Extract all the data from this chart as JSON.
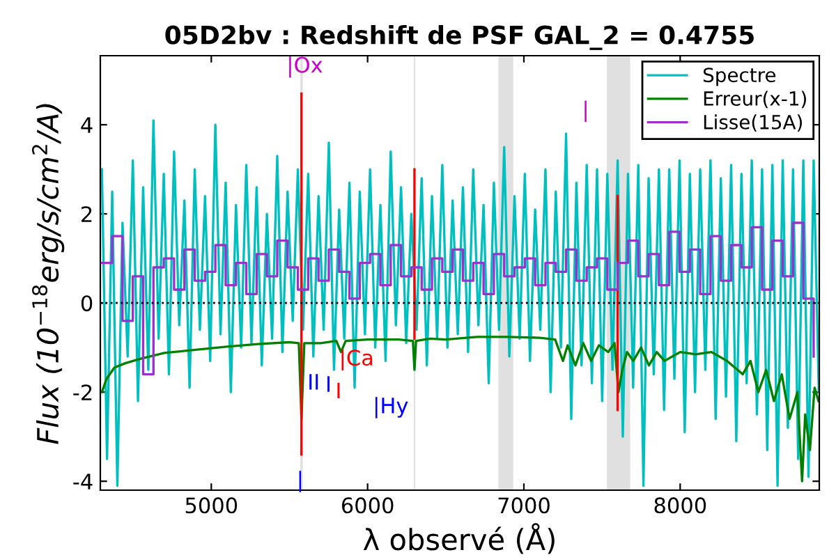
{
  "chart_data": {
    "type": "line",
    "title": "05D2bv : Redshift de PSF GAL_2 = 0.4755",
    "xlabel": "λ observé (Å)",
    "ylabel": "Flux (10$^{−18}$erg/s/cm$^{2}$/A)",
    "xlim": [
      4290,
      8890
    ],
    "ylim": [
      -4.2,
      5.55
    ],
    "xticks": [
      5000,
      6000,
      7000,
      8000
    ],
    "yticks": [
      -4,
      -2,
      0,
      2,
      4
    ],
    "grid": false,
    "legend": "top right",
    "series": [
      {
        "name": "Spectre",
        "color": "#00bfbf",
        "x": [
          4300,
          4333,
          4366,
          4399,
          4432,
          4465,
          4498,
          4531,
          4564,
          4597,
          4630,
          4663,
          4696,
          4729,
          4762,
          4795,
          4828,
          4861,
          4894,
          4927,
          4960,
          4993,
          5026,
          5059,
          5092,
          5125,
          5158,
          5191,
          5224,
          5257,
          5290,
          5323,
          5356,
          5389,
          5422,
          5455,
          5488,
          5521,
          5554,
          5587,
          5620,
          5653,
          5686,
          5719,
          5752,
          5785,
          5818,
          5851,
          5884,
          5917,
          5950,
          5983,
          6016,
          6049,
          6082,
          6115,
          6148,
          6181,
          6214,
          6247,
          6280,
          6313,
          6346,
          6379,
          6412,
          6445,
          6478,
          6511,
          6544,
          6577,
          6610,
          6643,
          6676,
          6709,
          6742,
          6775,
          6808,
          6841,
          6874,
          6907,
          6940,
          6973,
          7006,
          7039,
          7072,
          7105,
          7138,
          7171,
          7204,
          7237,
          7270,
          7303,
          7336,
          7369,
          7402,
          7435,
          7468,
          7501,
          7534,
          7567,
          7600,
          7633,
          7666,
          7699,
          7732,
          7765,
          7798,
          7831,
          7864,
          7897,
          7930,
          7963,
          7996,
          8029,
          8062,
          8095,
          8128,
          8161,
          8194,
          8227,
          8260,
          8293,
          8326,
          8359,
          8392,
          8425,
          8458,
          8491,
          8524,
          8557,
          8590,
          8623,
          8656,
          8689,
          8722,
          8755,
          8788,
          8821,
          8854,
          8887
        ],
        "values": [
          3.0,
          -3.5,
          2.5,
          -4.1,
          1.8,
          -1.2,
          3.2,
          -2.2,
          2.6,
          -1.5,
          4.1,
          -0.8,
          2.9,
          -1.6,
          3.4,
          -0.5,
          2.3,
          -1.9,
          3.0,
          -0.6,
          2.4,
          -1.3,
          4.0,
          -0.7,
          2.7,
          -2.0,
          2.2,
          -1.0,
          3.1,
          -0.9,
          2.6,
          -1.4,
          2.0,
          -0.8,
          3.3,
          -1.1,
          2.5,
          -0.4,
          3.0,
          -0.6,
          2.9,
          -1.2,
          2.4,
          -0.6,
          3.6,
          -1.5,
          2.1,
          -0.8,
          2.7,
          -1.9,
          2.5,
          -0.7,
          3.0,
          -1.0,
          2.2,
          -1.3,
          3.4,
          -0.5,
          2.6,
          -0.9,
          2.0,
          -0.6,
          2.8,
          -1.4,
          2.4,
          -0.8,
          3.1,
          -1.0,
          2.3,
          -0.7,
          2.6,
          -1.1,
          3.0,
          -0.5,
          2.2,
          -1.8,
          2.7,
          -0.6,
          3.5,
          -1.2,
          2.4,
          -0.8,
          2.9,
          -1.3,
          2.1,
          -0.6,
          3.0,
          -2.0,
          2.5,
          -1.0,
          3.8,
          -2.6,
          2.7,
          -1.4,
          3.1,
          -1.8,
          3.0,
          -2.2,
          2.9,
          -1.5,
          3.2,
          -3.0,
          2.9,
          -1.9,
          3.1,
          -4.1,
          2.8,
          -1.6,
          3.0,
          -2.4,
          3.0,
          -1.7,
          3.2,
          -2.9,
          2.9,
          -2.0,
          3.0,
          -1.5,
          3.2,
          -2.6,
          2.8,
          -2.1,
          3.1,
          -3.1,
          2.9,
          -1.8,
          3.2,
          -2.5,
          3.0,
          -3.3,
          3.1,
          -4.1,
          3.2,
          -2.8,
          3.0,
          -3.5,
          3.2,
          -3.9,
          3.2,
          -2.0
        ]
      },
      {
        "name": "Erreur(x-1)",
        "color": "#008000",
        "x": [
          4300,
          4330,
          4380,
          4450,
          4550,
          4700,
          4900,
          5100,
          5300,
          5500,
          5560,
          5577,
          5595,
          5700,
          5800,
          5830,
          5860,
          6000,
          6200,
          6290,
          6300,
          6310,
          6400,
          6500,
          6700,
          6900,
          7100,
          7200,
          7250,
          7280,
          7330,
          7380,
          7430,
          7480,
          7540,
          7580,
          7605,
          7630,
          7660,
          7700,
          7750,
          7800,
          7850,
          7900,
          8000,
          8100,
          8200,
          8300,
          8400,
          8450,
          8500,
          8550,
          8600,
          8650,
          8700,
          8750,
          8780,
          8800,
          8830,
          8860,
          8885
        ],
        "values": [
          -2.0,
          -1.7,
          -1.45,
          -1.35,
          -1.25,
          -1.12,
          -1.05,
          -0.98,
          -0.92,
          -0.88,
          -0.9,
          -2.6,
          -0.9,
          -0.9,
          -0.85,
          -1.1,
          -0.85,
          -0.82,
          -0.82,
          -0.85,
          -1.5,
          -0.85,
          -0.8,
          -0.82,
          -0.76,
          -0.76,
          -0.78,
          -0.82,
          -1.3,
          -0.95,
          -1.4,
          -0.9,
          -1.3,
          -0.95,
          -1.1,
          -0.9,
          -2.0,
          -1.5,
          -1.1,
          -1.3,
          -1.0,
          -1.4,
          -1.1,
          -1.3,
          -1.1,
          -1.15,
          -1.1,
          -1.3,
          -1.6,
          -1.3,
          -2.0,
          -1.5,
          -2.2,
          -1.6,
          -2.6,
          -2.0,
          -4.0,
          -2.5,
          -3.3,
          -1.9,
          -2.2
        ]
      },
      {
        "name": "Lisse(15A)",
        "type": "step",
        "color": "#9932cc",
        "x": [
          4300,
          4366,
          4432,
          4498,
          4564,
          4630,
          4696,
          4762,
          4828,
          4894,
          4960,
          5026,
          5092,
          5158,
          5224,
          5290,
          5356,
          5422,
          5488,
          5554,
          5620,
          5686,
          5752,
          5818,
          5884,
          5950,
          6016,
          6082,
          6148,
          6214,
          6280,
          6346,
          6412,
          6478,
          6544,
          6610,
          6676,
          6742,
          6808,
          6874,
          6940,
          7006,
          7072,
          7138,
          7204,
          7270,
          7336,
          7402,
          7468,
          7534,
          7600,
          7666,
          7732,
          7798,
          7864,
          7930,
          7996,
          8062,
          8128,
          8194,
          8260,
          8326,
          8392,
          8458,
          8524,
          8590,
          8656,
          8722,
          8788,
          8854
        ],
        "values": [
          0.9,
          1.5,
          -0.4,
          0.6,
          -1.6,
          0.8,
          1.0,
          0.3,
          1.2,
          0.5,
          0.7,
          1.3,
          0.4,
          0.9,
          0.2,
          1.1,
          0.6,
          1.4,
          0.8,
          0.3,
          1.0,
          0.5,
          1.2,
          0.7,
          0.1,
          0.9,
          1.1,
          0.4,
          1.3,
          0.6,
          0.8,
          0.3,
          1.0,
          0.7,
          1.2,
          0.5,
          0.9,
          0.2,
          1.1,
          0.6,
          0.8,
          1.0,
          0.4,
          0.9,
          0.7,
          1.2,
          0.5,
          0.8,
          1.0,
          0.3,
          0.9,
          1.4,
          0.6,
          1.1,
          0.4,
          1.6,
          0.7,
          1.2,
          0.2,
          1.5,
          0.5,
          1.3,
          0.8,
          1.7,
          0.3,
          1.4,
          0.6,
          1.8,
          0.1,
          -1.2
        ]
      },
      {
        "color": "#ff0000",
        "x": [
          5577,
          5577
        ],
        "values": [
          4.7,
          -3.4
        ]
      },
      {
        "color": "#ff0000",
        "x": [
          6300,
          6300
        ],
        "values": [
          3.0,
          -0.8
        ]
      },
      {
        "color": "#ff0000",
        "x": [
          7600,
          7600
        ],
        "values": [
          2.4,
          -2.4
        ]
      }
    ],
    "ref_lines": [
      {
        "axis": "y",
        "value": 0,
        "color": "#000000",
        "line_style": "dotted"
      }
    ],
    "bands": [
      {
        "axis": "x",
        "from": 5570,
        "to": 5585,
        "color": "#e0e0e0"
      },
      {
        "axis": "x",
        "from": 6295,
        "to": 6305,
        "color": "#e0e0e0"
      },
      {
        "axis": "x",
        "from": 6837,
        "to": 6932,
        "color": "#e0e0e0"
      },
      {
        "axis": "x",
        "from": 7531,
        "to": 7680,
        "color": "#e0e0e0"
      }
    ],
    "annotations": [
      "|Ox",
      "II",
      "I",
      "I",
      "|Ca",
      "|Hy",
      "|",
      "|"
    ]
  }
}
